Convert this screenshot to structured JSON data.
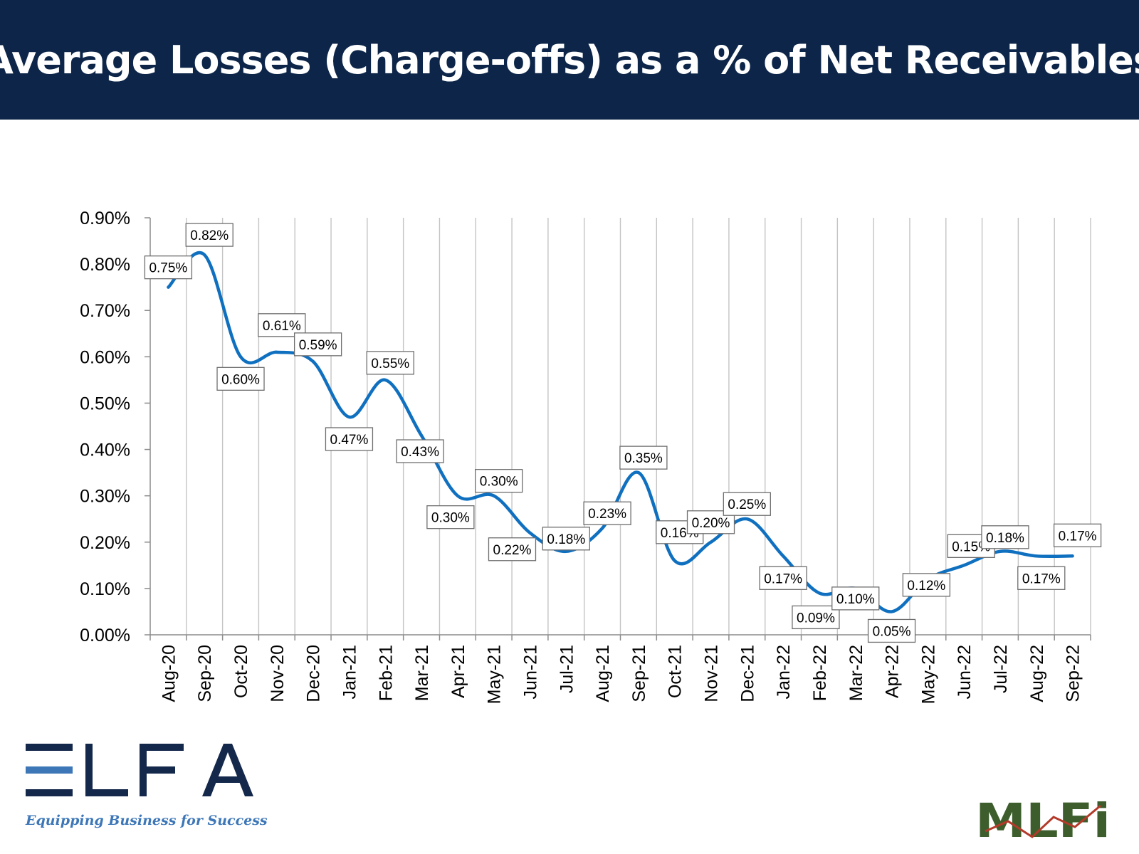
{
  "header": {
    "title": "Average Losses (Charge-offs) as a % of Net Receivables"
  },
  "chart_data": {
    "type": "line",
    "title": "Average Losses (Charge-offs) as a % of Net Receivables",
    "xlabel": "",
    "ylabel": "",
    "ylim": [
      0,
      0.9
    ],
    "y_ticks": [
      "0.00%",
      "0.10%",
      "0.20%",
      "0.30%",
      "0.40%",
      "0.50%",
      "0.60%",
      "0.70%",
      "0.80%",
      "0.90%"
    ],
    "grid": "vertical",
    "line_color": "#1070c0",
    "categories": [
      "Aug-20",
      "Sep-20",
      "Oct-20",
      "Nov-20",
      "Dec-20",
      "Jan-21",
      "Feb-21",
      "Mar-21",
      "Apr-21",
      "May-21",
      "Jun-21",
      "Jul-21",
      "Aug-21",
      "Sep-21",
      "Oct-21",
      "Nov-21",
      "Dec-21",
      "Jan-22",
      "Feb-22",
      "Mar-22",
      "Apr-22",
      "May-22",
      "Jun-22",
      "Jul-22",
      "Aug-22",
      "Sep-22"
    ],
    "values": [
      0.75,
      0.82,
      0.6,
      0.61,
      0.59,
      0.47,
      0.55,
      0.43,
      0.3,
      0.3,
      0.22,
      0.18,
      0.23,
      0.35,
      0.16,
      0.2,
      0.25,
      0.17,
      0.09,
      0.1,
      0.05,
      0.12,
      0.15,
      0.18,
      0.17,
      0.17
    ],
    "data_labels": [
      "0.75%",
      "0.82%",
      "0.60%",
      "0.61%",
      "0.59%",
      "0.47%",
      "0.55%",
      "0.43%",
      "0.30%",
      "0.30%",
      "0.22%",
      "0.18%",
      "0.23%",
      "0.35%",
      "0.16%",
      "0.20%",
      "0.25%",
      "0.17%",
      "0.09%",
      "0.10%",
      "0.05%",
      "0.12%",
      "0.15%",
      "0.18%",
      "0.17%",
      "0.17%"
    ]
  },
  "logos": {
    "elfa_name": "ELFA",
    "elfa_tagline": "Equipping Business for Success",
    "mlfi_name": "MLFi"
  },
  "colors": {
    "banner": "#0c2548",
    "line": "#1070c0",
    "elfa_navy": "#14284b",
    "elfa_blue": "#3d77b8",
    "mlfi_green": "#3d5e2c"
  }
}
